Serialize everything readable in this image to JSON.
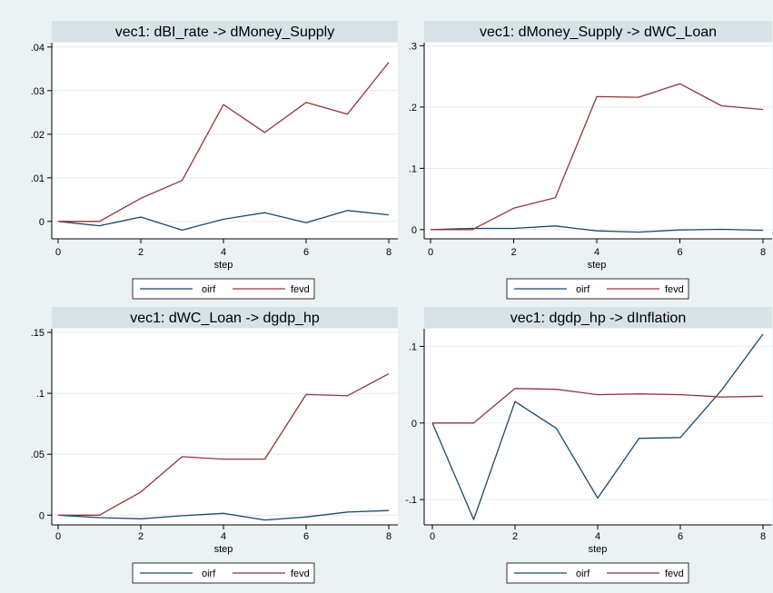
{
  "legend_labels": {
    "oirf": "oirf",
    "fevd": "fevd"
  },
  "colors": {
    "oirf": "#1a476f",
    "fevd": "#90353b",
    "title_bg": "#d6e2e6",
    "outer_bg": "#eaf2f3"
  },
  "chart_data": [
    {
      "type": "line",
      "title": "vec1: dBI_rate -> dMoney_Supply",
      "xlabel": "step",
      "ylabel": "",
      "x": [
        0,
        1,
        2,
        3,
        4,
        5,
        6,
        7,
        8
      ],
      "xticks": [
        "0",
        "2",
        "4",
        "6",
        "8"
      ],
      "xlim": [
        0,
        8
      ],
      "ylim": [
        -0.004,
        0.041
      ],
      "yticks": [
        0,
        0.01,
        0.02,
        0.03,
        0.04
      ],
      "ytick_labels": [
        "0",
        ".01",
        ".02",
        ".03",
        ".04"
      ],
      "grid": true,
      "legend_position": "bottom",
      "series": [
        {
          "name": "oirf",
          "values": [
            0,
            -0.001,
            0.001,
            -0.002,
            0.0005,
            0.002,
            -0.0003,
            0.0025,
            0.0015
          ]
        },
        {
          "name": "fevd",
          "values": [
            0,
            0,
            0.0053,
            0.0094,
            0.0268,
            0.0204,
            0.0273,
            0.0246,
            0.0365
          ]
        }
      ]
    },
    {
      "type": "line",
      "title": "vec1: dMoney_Supply -> dWC_Loan",
      "xlabel": "step",
      "ylabel": "",
      "x": [
        0,
        1,
        2,
        3,
        4,
        5,
        6,
        7,
        8
      ],
      "xticks": [
        "0",
        "2",
        "4",
        "6",
        "8"
      ],
      "xlim": [
        0,
        8
      ],
      "ylim": [
        -0.015,
        0.305
      ],
      "yticks": [
        0,
        0.1,
        0.2,
        0.3
      ],
      "ytick_labels": [
        "0",
        ".1",
        ".2",
        ".3"
      ],
      "grid": true,
      "legend_position": "bottom",
      "series": [
        {
          "name": "oirf",
          "values": [
            0,
            0.002,
            0.002,
            0.006,
            -0.002,
            -0.004,
            -0.0005,
            0.0005,
            -0.001
          ]
        },
        {
          "name": "fevd",
          "values": [
            0,
            0,
            0.035,
            0.052,
            0.217,
            0.216,
            0.238,
            0.202,
            0.196
          ]
        }
      ]
    },
    {
      "type": "line",
      "title": "vec1: dWC_Loan -> dgdp_hp",
      "xlabel": "step",
      "ylabel": "",
      "x": [
        0,
        1,
        2,
        3,
        4,
        5,
        6,
        7,
        8
      ],
      "xticks": [
        "0",
        "2",
        "4",
        "6",
        "8"
      ],
      "xlim": [
        0,
        8
      ],
      "ylim": [
        -0.008,
        0.153
      ],
      "yticks": [
        0,
        0.05,
        0.1,
        0.15
      ],
      "ytick_labels": [
        "0",
        ".05",
        ".1",
        ".15"
      ],
      "grid": true,
      "legend_position": "bottom",
      "series": [
        {
          "name": "oirf",
          "values": [
            0,
            -0.002,
            -0.003,
            -0.0005,
            0.0015,
            -0.004,
            -0.0015,
            0.0025,
            0.0038
          ]
        },
        {
          "name": "fevd",
          "values": [
            0,
            0,
            0.019,
            0.048,
            0.046,
            0.046,
            0.099,
            0.098,
            0.116
          ]
        }
      ]
    },
    {
      "type": "line",
      "title": "vec1: dgdp_hp -> dInflation",
      "xlabel": "step",
      "ylabel": "",
      "x": [
        0,
        1,
        2,
        3,
        4,
        5,
        6,
        7,
        8
      ],
      "xticks": [
        "0",
        "2",
        "4",
        "6",
        "8"
      ],
      "xlim": [
        0,
        8
      ],
      "ylim": [
        -0.133,
        0.123
      ],
      "yticks": [
        -0.1,
        0,
        0.1
      ],
      "ytick_labels": [
        "-.1",
        "0",
        ".1"
      ],
      "grid": true,
      "legend_position": "bottom",
      "series": [
        {
          "name": "oirf",
          "values": [
            0,
            -0.126,
            0.028,
            -0.007,
            -0.098,
            -0.02,
            -0.019,
            0.043,
            0.116
          ]
        },
        {
          "name": "fevd",
          "values": [
            0,
            0,
            0.045,
            0.044,
            0.037,
            0.038,
            0.037,
            0.034,
            0.035
          ]
        }
      ]
    }
  ]
}
